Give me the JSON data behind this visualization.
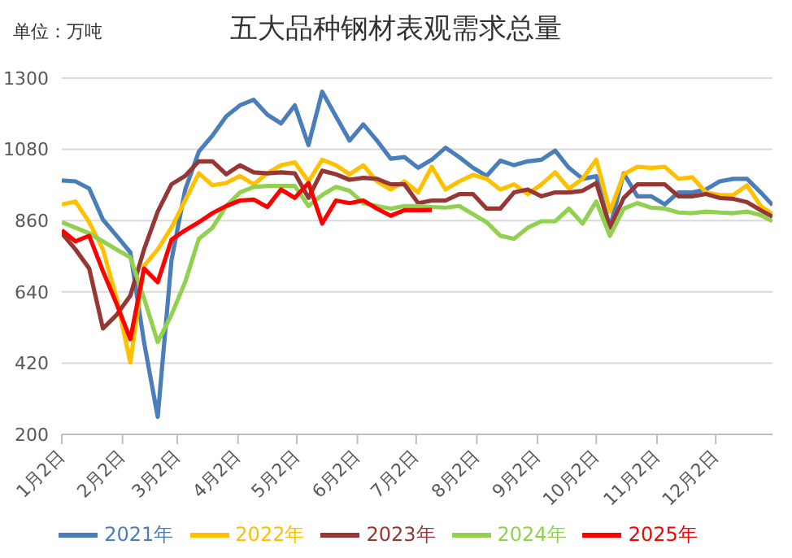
{
  "chart_data": {
    "type": "line",
    "title": "五大品种钢材表观需求总量",
    "annotations": [
      "单位：万吨"
    ],
    "x": [
      "--01-02",
      "--01-09",
      "--01-16",
      "--01-23",
      "--01-30",
      "--02-06",
      "--02-13",
      "--02-20",
      "--02-27",
      "--03-06",
      "--03-13",
      "--03-20",
      "--03-27",
      "--04-03",
      "--04-10",
      "--04-17",
      "--04-24",
      "--05-01",
      "--05-08",
      "--05-15",
      "--05-22",
      "--05-29",
      "--06-05",
      "--06-12",
      "--06-19",
      "--06-26",
      "--07-03",
      "--07-10",
      "--07-17",
      "--07-24",
      "--07-31",
      "--08-07",
      "--08-14",
      "--08-21",
      "--08-28",
      "--09-04",
      "--09-11",
      "--09-18",
      "--09-25",
      "--10-02",
      "--10-09",
      "--10-16",
      "--10-23",
      "--10-30",
      "--11-06",
      "--11-13",
      "--11-20",
      "--11-27",
      "--12-04",
      "--12-11",
      "--12-18",
      "--12-25",
      "--12-31"
    ],
    "xlim": [
      "--01-02",
      "--12-31"
    ],
    "xticks": [
      {
        "value": "--01-02",
        "label": "1月2日"
      },
      {
        "value": "--02-02",
        "label": "2月2日"
      },
      {
        "value": "--03-02",
        "label": "3月2日"
      },
      {
        "value": "--04-02",
        "label": "4月2日"
      },
      {
        "value": "--05-02",
        "label": "5月2日"
      },
      {
        "value": "--06-02",
        "label": "6月2日"
      },
      {
        "value": "--07-02",
        "label": "7月2日"
      },
      {
        "value": "--08-02",
        "label": "8月2日"
      },
      {
        "value": "--09-02",
        "label": "9月2日"
      },
      {
        "value": "--10-02",
        "label": "10月2日"
      },
      {
        "value": "--11-02",
        "label": "11月2日"
      },
      {
        "value": "--12-02",
        "label": "12月2日"
      }
    ],
    "ylim": [
      200,
      1300
    ],
    "yticks": [
      200,
      420,
      640,
      860,
      1080,
      1300
    ],
    "grid": "y",
    "legend": "bottom",
    "series": [
      {
        "name": "2021年",
        "color": "#4a7ebb",
        "values": [
          984,
          981,
          959,
          863,
          813,
          762,
          485,
          254,
          737,
          955,
          1073,
          1123,
          1182,
          1216,
          1233,
          1187,
          1160,
          1216,
          1093,
          1258,
          1182,
          1107,
          1157,
          1107,
          1051,
          1056,
          1023,
          1048,
          1085,
          1056,
          1023,
          998,
          1045,
          1031,
          1043,
          1048,
          1076,
          1023,
          989,
          997,
          838,
          1006,
          935,
          935,
          910,
          947,
          947,
          956,
          981,
          989,
          989,
          947,
          908
        ]
      },
      {
        "name": "2022年",
        "color": "#ffc000",
        "values": [
          910,
          919,
          855,
          771,
          620,
          422,
          720,
          771,
          838,
          922,
          1006,
          969,
          976,
          998,
          972,
          1006,
          1031,
          1040,
          981,
          1048,
          1031,
          1003,
          1031,
          981,
          956,
          981,
          947,
          1026,
          956,
          981,
          1001,
          989,
          956,
          972,
          942,
          972,
          1009,
          959,
          989,
          1048,
          888,
          1003,
          1026,
          1023,
          1026,
          989,
          994,
          947,
          939,
          939,
          969,
          905,
          880
        ]
      },
      {
        "name": "2023年",
        "color": "#953735",
        "values": [
          821,
          771,
          712,
          527,
          569,
          628,
          771,
          888,
          972,
          998,
          1043,
          1043,
          1003,
          1031,
          1009,
          1006,
          1009,
          1006,
          930,
          1014,
          1003,
          986,
          992,
          989,
          972,
          972,
          914,
          922,
          922,
          942,
          942,
          897,
          897,
          947,
          956,
          935,
          947,
          947,
          952,
          976,
          838,
          930,
          972,
          972,
          972,
          935,
          935,
          942,
          930,
          927,
          917,
          892,
          872
        ]
      },
      {
        "name": "2024年",
        "color": "#92d050",
        "values": [
          855,
          838,
          821,
          796,
          771,
          746,
          620,
          485,
          569,
          670,
          804,
          838,
          905,
          947,
          964,
          967,
          967,
          967,
          905,
          939,
          964,
          952,
          914,
          905,
          897,
          905,
          905,
          902,
          900,
          905,
          880,
          855,
          813,
          804,
          838,
          858,
          858,
          897,
          851,
          919,
          813,
          897,
          914,
          900,
          897,
          885,
          883,
          888,
          885,
          883,
          888,
          877,
          858
        ]
      },
      {
        "name": "2025年",
        "color": "#ff0000",
        "values": [
          830,
          796,
          813,
          704,
          603,
          494,
          712,
          670,
          801,
          830,
          855,
          883,
          905,
          922,
          925,
          902,
          956,
          930,
          976,
          851,
          922,
          914,
          922,
          897,
          875,
          892,
          892,
          893,
          null,
          null,
          null,
          null,
          null,
          null,
          null,
          null,
          null,
          null,
          null,
          null,
          null,
          null,
          null,
          null,
          null,
          null,
          null,
          null,
          null,
          null,
          null,
          null,
          null
        ]
      }
    ]
  }
}
